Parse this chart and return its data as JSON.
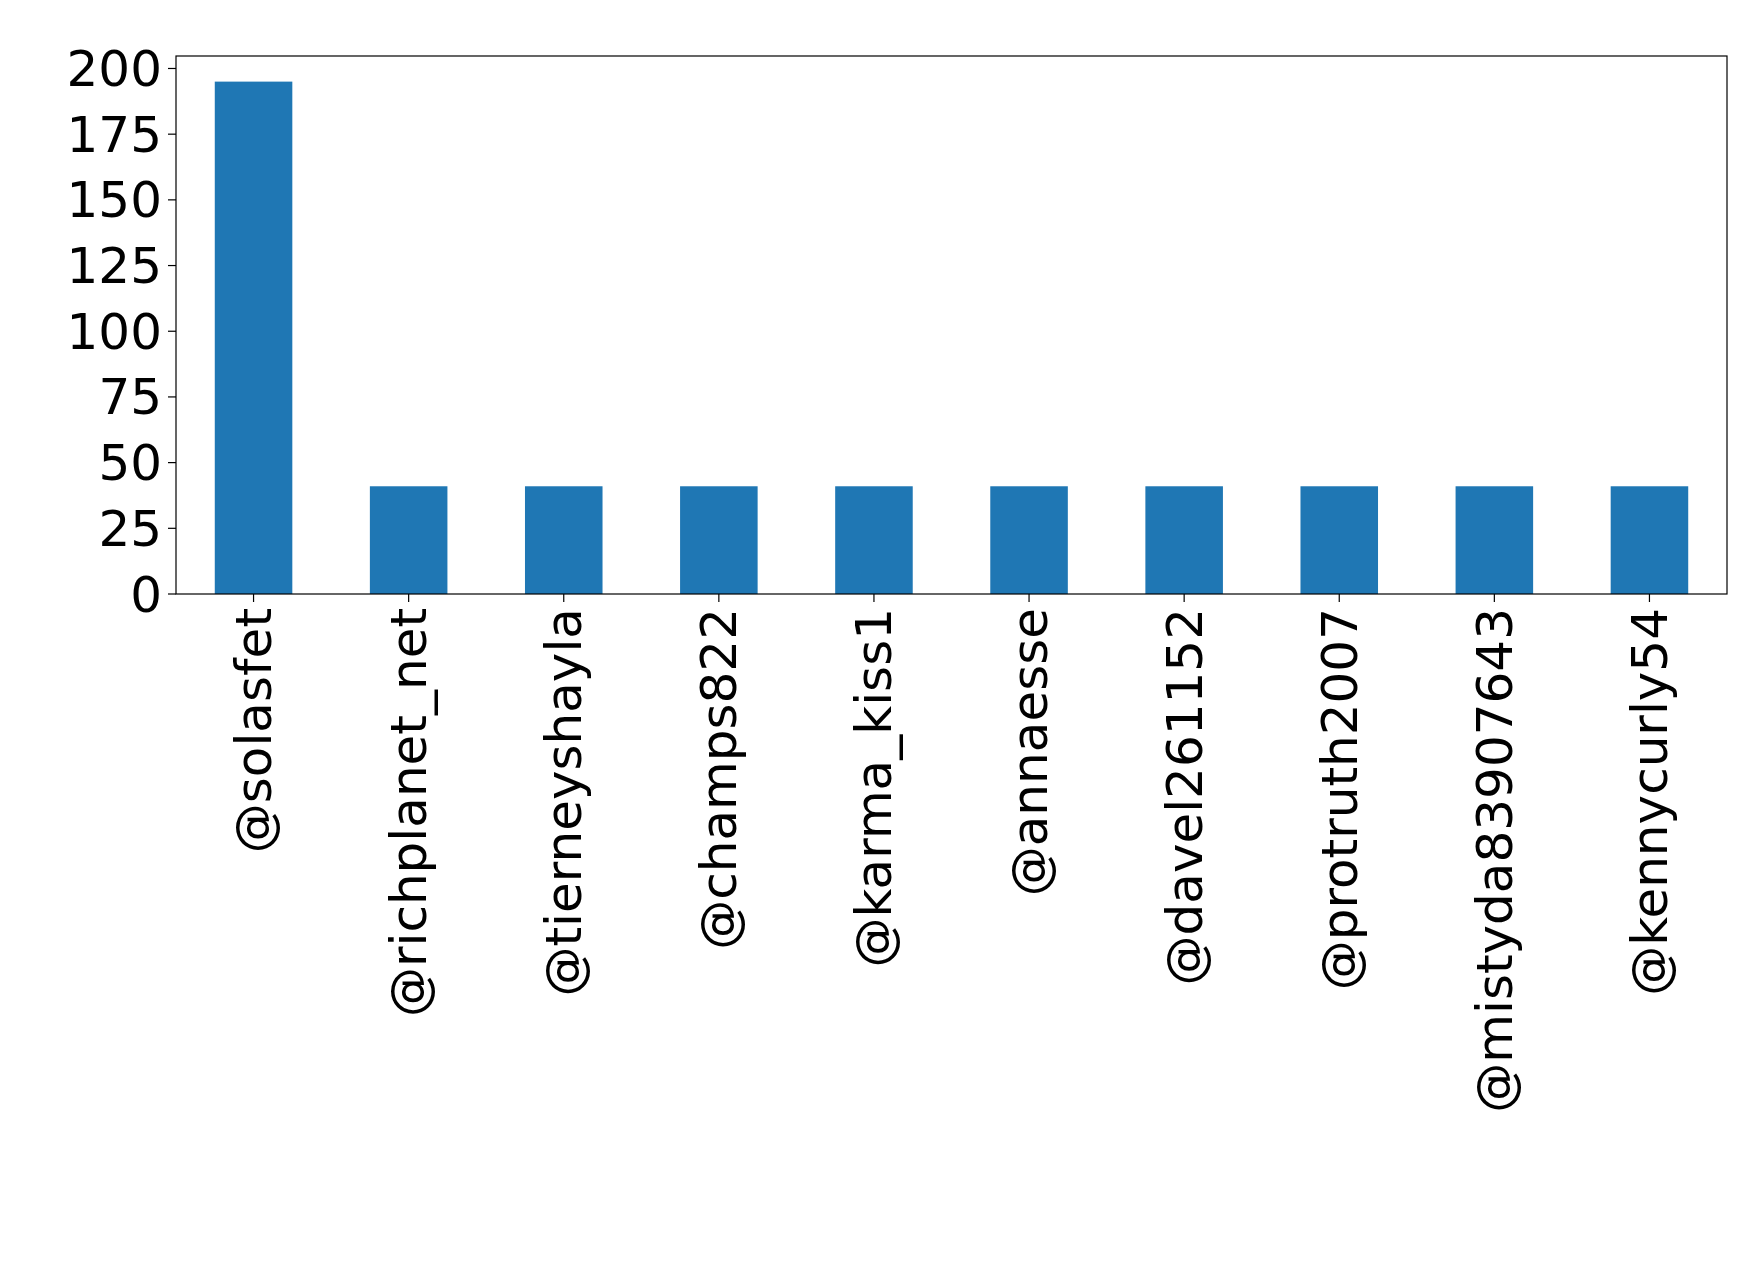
{
  "chart_data": {
    "type": "bar",
    "categories": [
      "@solasfet",
      "@richplanet_net",
      "@tierneyshayla",
      "@champs822",
      "@karma_kiss1",
      "@annaesse",
      "@davel261152",
      "@protruth2007",
      "@mistyda83907643",
      "@kennycurly54"
    ],
    "values": [
      195,
      41,
      41,
      41,
      41,
      41,
      41,
      41,
      41,
      41
    ],
    "color": "#1f77b4",
    "ylim": [
      0,
      204.75
    ],
    "yticks": [
      0,
      25,
      50,
      75,
      100,
      125,
      150,
      175,
      200
    ],
    "grid": false
  }
}
